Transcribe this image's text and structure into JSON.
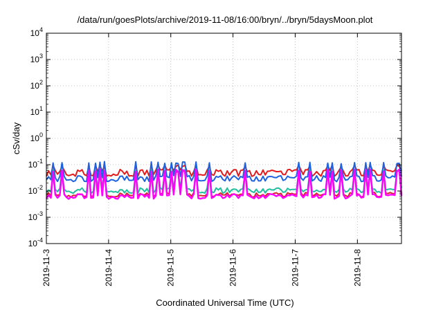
{
  "chart_data": {
    "type": "line",
    "title": "/data/run/goesPlots/archive/2019-11-08/16:00/bryn/../bryn/5daysMoon.plot",
    "xlabel": "Coordinated Universal Time (UTC)",
    "ylabel": "cSv/day",
    "yscale": "log",
    "ylim": [
      0.0001,
      10000
    ],
    "xlim": [
      "2019-11-03 00:00",
      "2019-11-08 17:00"
    ],
    "grid": true,
    "y_ticks": [
      {
        "value": 0.0001,
        "mantissa": "10",
        "exp": "-4"
      },
      {
        "value": 0.001,
        "mantissa": "10",
        "exp": "-3"
      },
      {
        "value": 0.01,
        "mantissa": "10",
        "exp": "-2"
      },
      {
        "value": 0.1,
        "mantissa": "10",
        "exp": "-1"
      },
      {
        "value": 1,
        "mantissa": "10",
        "exp": "0"
      },
      {
        "value": 10,
        "mantissa": "10",
        "exp": "1"
      },
      {
        "value": 100,
        "mantissa": "10",
        "exp": "2"
      },
      {
        "value": 1000,
        "mantissa": "10",
        "exp": "3"
      },
      {
        "value": 10000,
        "mantissa": "10",
        "exp": "4"
      }
    ],
    "x_ticks": [
      "2019-11-3",
      "2019-11-4",
      "2019-11-5",
      "2019-11-6",
      "2019-11-7",
      "2019-11-8"
    ],
    "series": [
      {
        "color": "#e41a1c",
        "baseline": 0.06,
        "low": 0.04,
        "spike": 0.09
      },
      {
        "color": "#1f62e0",
        "baseline": 0.035,
        "low": 0.025,
        "spike": 0.12
      },
      {
        "color": "#1fbf9f",
        "baseline": 0.012,
        "low": 0.009,
        "spike": 0.06
      },
      {
        "color": "#d62728",
        "baseline": 0.008,
        "low": 0.0065,
        "spike": 0.055
      },
      {
        "color": "#ff00ff",
        "baseline": 0.007,
        "low": 0.0055,
        "spike": 0.06
      }
    ]
  }
}
